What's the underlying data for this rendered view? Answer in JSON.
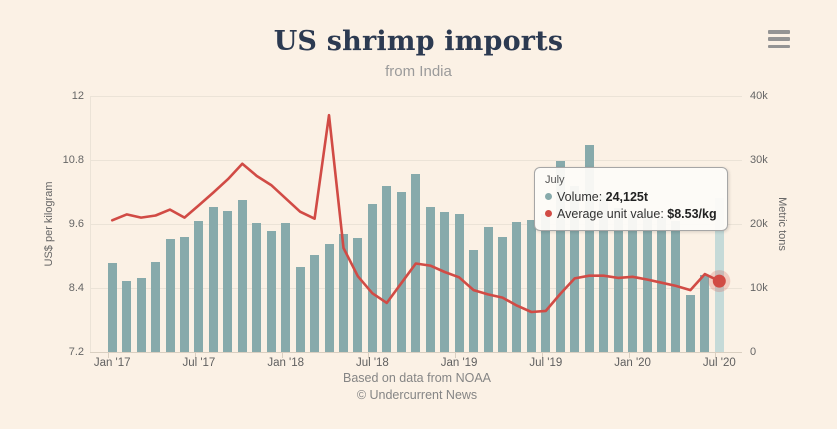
{
  "header": {
    "title": "US shrimp imports",
    "subtitle": "from India"
  },
  "menu": {
    "icon": "hamburger-icon"
  },
  "caption": {
    "line1": "Based on data from NOAA",
    "line2": "© Undercurrent News"
  },
  "tooltip": {
    "header": "July",
    "rows": [
      {
        "label": "Volume: ",
        "value": "24,125t",
        "color": "#87aaab"
      },
      {
        "label": "Average unit value: ",
        "value": "$8.53/kg",
        "color": "#d14b45"
      }
    ]
  },
  "chart_data": {
    "type": "bar",
    "title": "US shrimp imports",
    "subtitle": "from India",
    "categories": [
      "Jan '17",
      "Feb '17",
      "Mar '17",
      "Apr '17",
      "May '17",
      "Jun '17",
      "Jul '17",
      "Aug '17",
      "Sep '17",
      "Oct '17",
      "Nov '17",
      "Dec '17",
      "Jan '18",
      "Feb '18",
      "Mar '18",
      "Apr '18",
      "May '18",
      "Jun '18",
      "Jul '18",
      "Aug '18",
      "Sep '18",
      "Oct '18",
      "Nov '18",
      "Dec '18",
      "Jan '19",
      "Feb '19",
      "Mar '19",
      "Apr '19",
      "May '19",
      "Jun '19",
      "Jul '19",
      "Aug '19",
      "Sep '19",
      "Oct '19",
      "Nov '19",
      "Dec '19",
      "Jan '20",
      "Feb '20",
      "Mar '20",
      "Apr '20",
      "May '20",
      "Jun '20",
      "Jul '20"
    ],
    "series": [
      {
        "name": "Volume",
        "type": "bar",
        "axis": "right",
        "unit": "metric tons",
        "color": "#87aaab",
        "highlight_color": "#c5dad8",
        "values": [
          13900,
          11100,
          11600,
          14000,
          17700,
          18000,
          20500,
          22700,
          22000,
          23800,
          20200,
          18900,
          20200,
          13300,
          15100,
          16900,
          18500,
          17800,
          23200,
          25900,
          25000,
          27800,
          22600,
          21900,
          21500,
          16000,
          19500,
          17900,
          20300,
          20600,
          21500,
          29800,
          26000,
          32300,
          24500,
          22500,
          21500,
          22000,
          21000,
          20500,
          8900,
          12100,
          24125
        ]
      },
      {
        "name": "Average unit value",
        "type": "line",
        "axis": "left",
        "unit": "US$/kg",
        "color": "#d14b45",
        "values": [
          9.67,
          9.78,
          9.72,
          9.76,
          9.87,
          9.72,
          9.95,
          10.19,
          10.44,
          10.73,
          10.5,
          10.33,
          10.08,
          9.83,
          9.7,
          11.64,
          9.15,
          8.62,
          8.3,
          8.12,
          8.49,
          8.86,
          8.82,
          8.7,
          8.6,
          8.36,
          8.28,
          8.22,
          8.07,
          7.95,
          7.97,
          8.29,
          8.58,
          8.63,
          8.63,
          8.59,
          8.61,
          8.56,
          8.5,
          8.44,
          8.36,
          8.66,
          8.53
        ]
      }
    ],
    "y_left": {
      "label": "US$ per kilogram",
      "range": [
        7.2,
        12
      ],
      "tick_labels": [
        "12",
        "10.8",
        "9.6",
        "8.4",
        "7.2"
      ]
    },
    "y_right": {
      "label": "Metric tons",
      "range": [
        0,
        40000
      ],
      "tick_labels": [
        "40k",
        "30k",
        "20k",
        "10k",
        "0"
      ]
    },
    "x_tick_indices": [
      0,
      6,
      12,
      18,
      24,
      30,
      36,
      42
    ],
    "x_tick_labels": [
      "Jan '17",
      "Jul '17",
      "Jan '18",
      "Jul '18",
      "Jan '19",
      "Jul '19",
      "Jan '20",
      "Jul '20"
    ],
    "highlighted_index": 42,
    "grid": true,
    "legend": "none"
  }
}
